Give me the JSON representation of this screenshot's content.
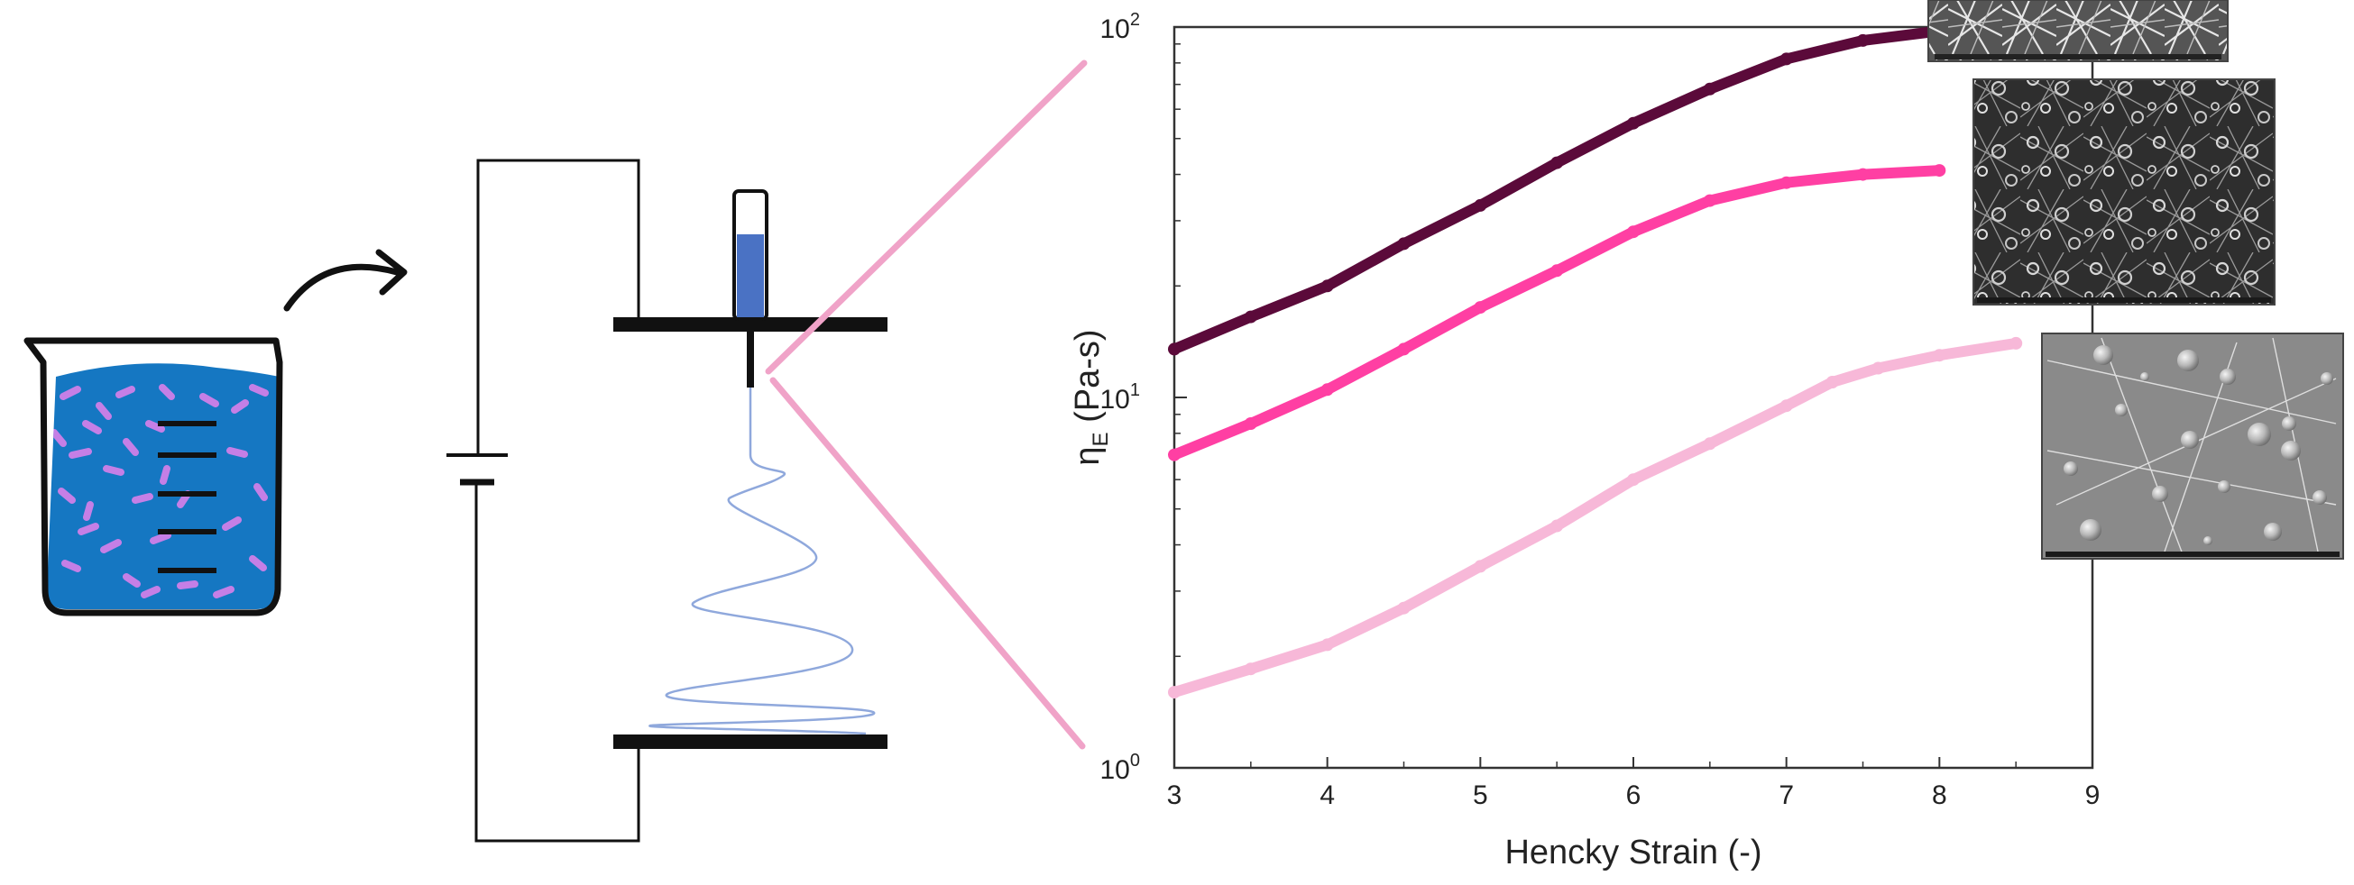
{
  "colors": {
    "beaker_liquid": "#1577c2",
    "fibers": "#c57fe6",
    "syringe_fluid": "#4a72c4",
    "jet": "#8fa8dc",
    "zoom_lines": "#f0a3c8",
    "series": [
      "#5b0a3a",
      "#ff3fa3",
      "#f7b8d8"
    ]
  },
  "icons": [
    "beaker-icon",
    "curved-arrow-icon",
    "battery-icon",
    "syringe-icon",
    "sem-micrograph"
  ],
  "chart_data": {
    "type": "line",
    "xlabel": "Hencky Strain (-)",
    "ylabel_symbol": "η",
    "ylabel_sub": "E",
    "ylabel_unit": " (Pa-s)",
    "xlim": [
      3,
      9
    ],
    "ylim": [
      1,
      100
    ],
    "yscale": "log",
    "x_ticks": [
      "3",
      "4",
      "5",
      "6",
      "7",
      "8",
      "9"
    ],
    "y_ticks": [
      {
        "value": 1,
        "base": "10",
        "exp": "0"
      },
      {
        "value": 10,
        "base": "10",
        "exp": "1"
      },
      {
        "value": 100,
        "base": "10",
        "exp": "2"
      }
    ],
    "grid": false,
    "legend": "none",
    "series": [
      {
        "color": "#5b0a3a",
        "points": [
          [
            3.0,
            13.5
          ],
          [
            3.5,
            16.5
          ],
          [
            4.0,
            20
          ],
          [
            4.5,
            26
          ],
          [
            5.0,
            33
          ],
          [
            5.5,
            43
          ],
          [
            6.0,
            55
          ],
          [
            6.5,
            68
          ],
          [
            7.0,
            82
          ],
          [
            7.5,
            92
          ],
          [
            7.95,
            97
          ]
        ]
      },
      {
        "color": "#ff3fa3",
        "points": [
          [
            3.0,
            7.0
          ],
          [
            3.5,
            8.5
          ],
          [
            4.0,
            10.5
          ],
          [
            4.5,
            13.5
          ],
          [
            5.0,
            17.5
          ],
          [
            5.5,
            22
          ],
          [
            6.0,
            28
          ],
          [
            6.5,
            34
          ],
          [
            7.0,
            38
          ],
          [
            7.5,
            40
          ],
          [
            8.0,
            41
          ]
        ]
      },
      {
        "color": "#f7b8d8",
        "points": [
          [
            3.0,
            1.6
          ],
          [
            3.5,
            1.85
          ],
          [
            4.0,
            2.15
          ],
          [
            4.5,
            2.7
          ],
          [
            5.0,
            3.5
          ],
          [
            5.5,
            4.5
          ],
          [
            6.0,
            6.0
          ],
          [
            6.5,
            7.5
          ],
          [
            7.0,
            9.5
          ],
          [
            7.3,
            11
          ],
          [
            7.6,
            12.0
          ],
          [
            8.0,
            13.0
          ],
          [
            8.5,
            14.0
          ]
        ]
      }
    ]
  }
}
